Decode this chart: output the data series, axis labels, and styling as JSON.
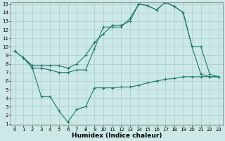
{
  "line1_x": [
    0,
    1,
    2,
    3,
    4,
    5,
    6,
    7,
    8,
    9,
    10,
    11,
    12,
    13,
    14,
    15,
    16,
    17,
    18,
    19,
    20,
    21,
    22,
    23
  ],
  "line1_y": [
    9.5,
    8.7,
    7.8,
    7.8,
    7.8,
    7.8,
    7.5,
    8.0,
    9.0,
    10.5,
    11.5,
    12.5,
    12.5,
    13.0,
    15.0,
    14.8,
    14.3,
    15.2,
    14.7,
    14.0,
    10.0,
    10.0,
    6.8,
    6.5
  ],
  "line2_x": [
    0,
    1,
    2,
    3,
    4,
    5,
    6,
    7,
    8,
    9,
    10,
    11,
    12,
    13,
    14,
    15,
    16,
    17,
    18,
    19,
    20,
    21,
    22,
    23
  ],
  "line2_y": [
    9.5,
    8.7,
    7.5,
    7.5,
    7.3,
    7.0,
    7.0,
    7.3,
    7.3,
    9.8,
    12.3,
    12.3,
    12.3,
    13.3,
    15.0,
    14.8,
    14.3,
    15.2,
    14.7,
    14.0,
    10.0,
    6.8,
    6.5,
    6.5
  ],
  "line3_x": [
    1,
    2,
    3,
    4,
    5,
    6,
    7,
    8,
    9,
    10,
    11,
    12,
    13,
    14,
    15,
    16,
    17,
    18,
    19,
    20,
    21,
    22,
    23
  ],
  "line3_y": [
    8.7,
    7.5,
    4.2,
    4.2,
    2.5,
    1.2,
    2.7,
    3.0,
    5.2,
    5.2,
    5.2,
    5.3,
    5.3,
    5.5,
    5.8,
    6.0,
    6.2,
    6.3,
    6.5,
    6.5,
    6.5,
    6.5,
    6.5
  ],
  "color": "#1a7a6a",
  "bg_color": "#cce8e8",
  "grid_color": "#aacccc",
  "xlabel": "Humidex (Indice chaleur)",
  "ylim": [
    1,
    15
  ],
  "xlim": [
    -0.5,
    23.5
  ],
  "yticks": [
    1,
    2,
    3,
    4,
    5,
    6,
    7,
    8,
    9,
    10,
    11,
    12,
    13,
    14,
    15
  ],
  "xticks": [
    0,
    1,
    2,
    3,
    4,
    5,
    6,
    7,
    8,
    9,
    10,
    11,
    12,
    13,
    14,
    15,
    16,
    17,
    18,
    19,
    20,
    21,
    22,
    23
  ],
  "marker": "+",
  "linewidth": 0.8,
  "marker_size": 3,
  "tick_fontsize": 5,
  "xlabel_fontsize": 6.5
}
